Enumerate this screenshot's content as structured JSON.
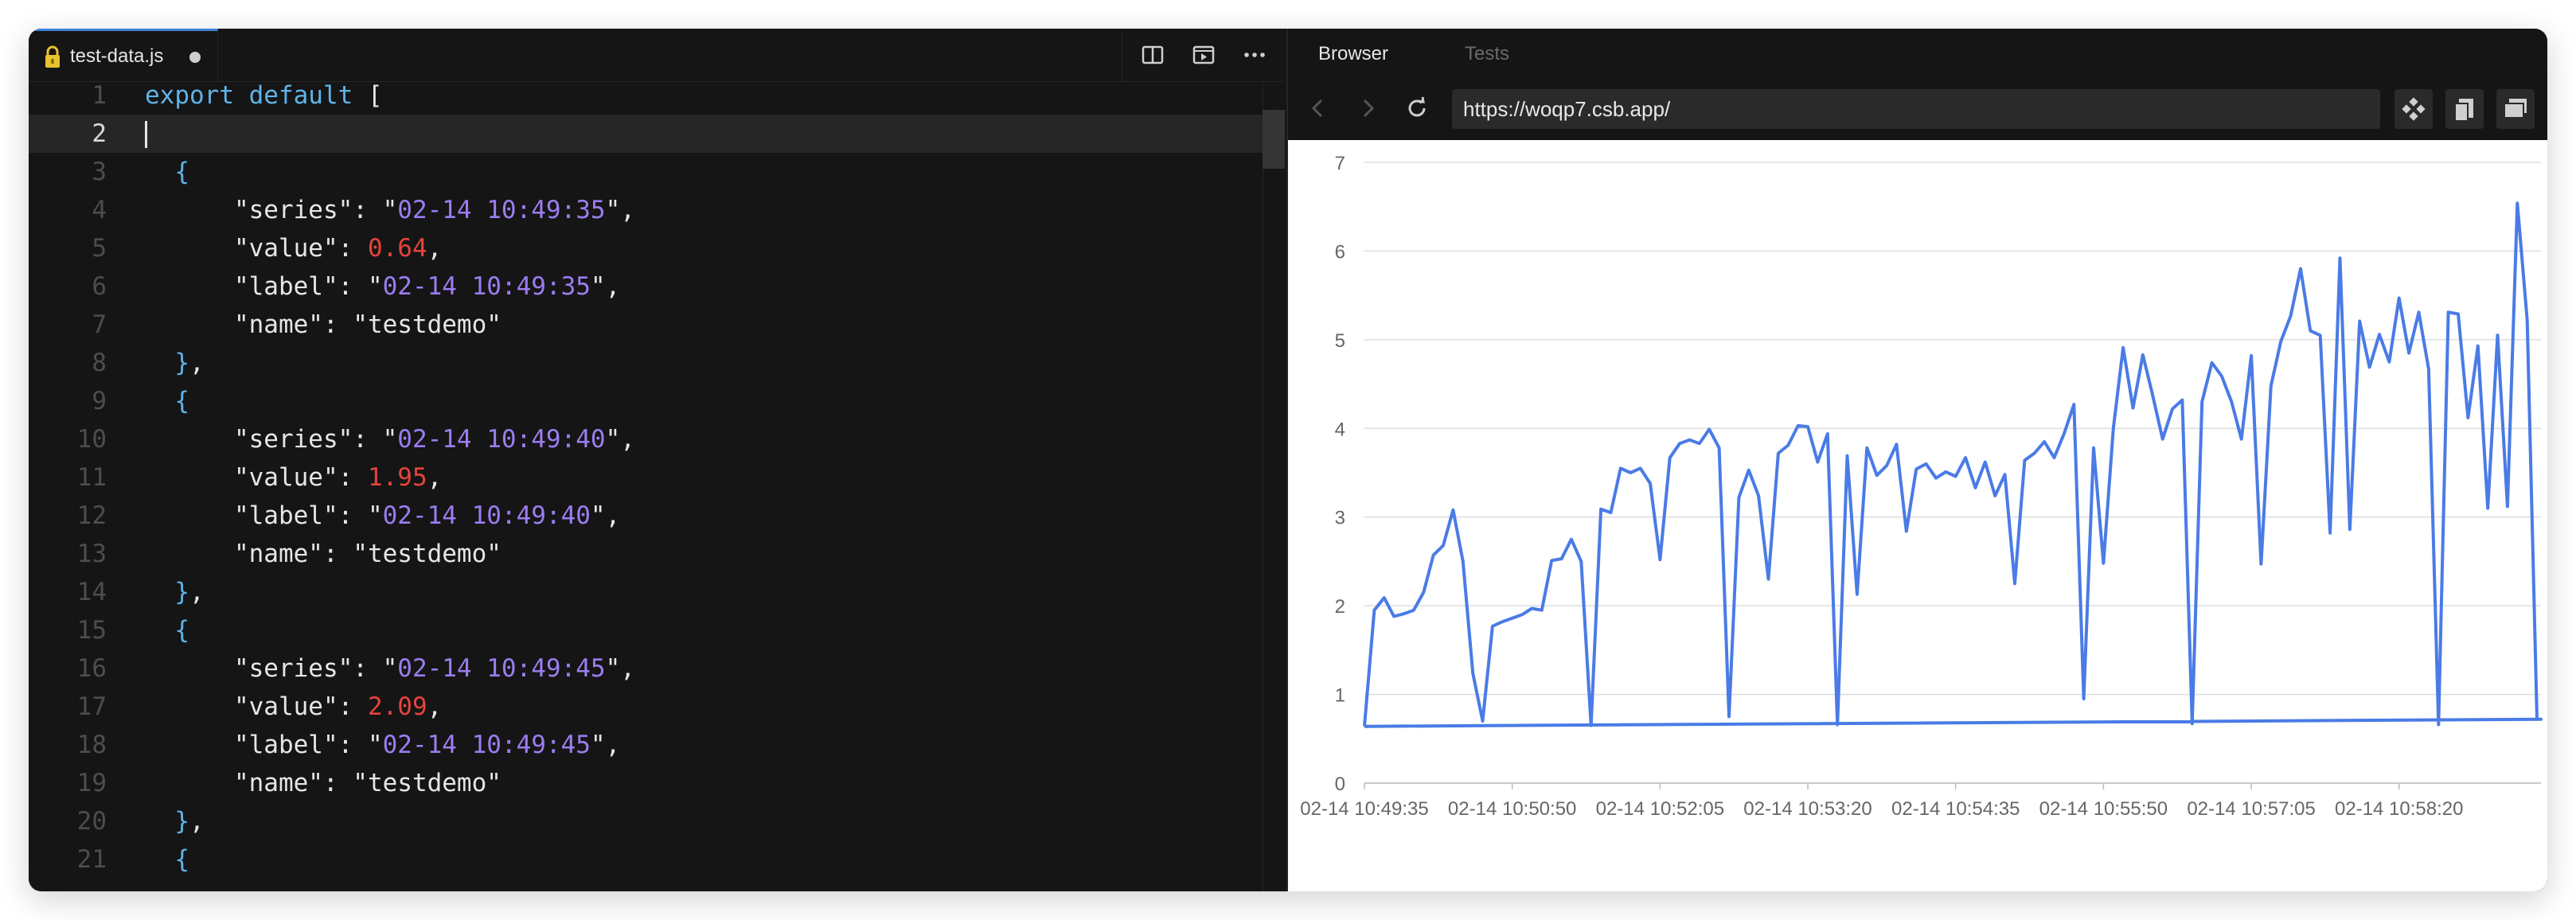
{
  "editor": {
    "tab_label": "test-data.js",
    "lines": [
      {
        "n": "1",
        "tokens": [
          [
            "kw",
            "export default "
          ],
          [
            "pun",
            "["
          ]
        ]
      },
      {
        "n": "2",
        "tokens": []
      },
      {
        "n": "3",
        "tokens": [
          [
            "pun",
            "  "
          ],
          [
            "brace",
            "{"
          ]
        ]
      },
      {
        "n": "4",
        "tokens": [
          [
            "pun",
            "      \"series\": \""
          ],
          [
            "str",
            "02-14 10:49:35"
          ],
          [
            "pun",
            "\","
          ]
        ]
      },
      {
        "n": "5",
        "tokens": [
          [
            "pun",
            "      \"value\": "
          ],
          [
            "num",
            "0.64"
          ],
          [
            "pun",
            ","
          ]
        ]
      },
      {
        "n": "6",
        "tokens": [
          [
            "pun",
            "      \"label\": \""
          ],
          [
            "str",
            "02-14 10:49:35"
          ],
          [
            "pun",
            "\","
          ]
        ]
      },
      {
        "n": "7",
        "tokens": [
          [
            "pun",
            "      \"name\": \"testdemo\""
          ]
        ]
      },
      {
        "n": "8",
        "tokens": [
          [
            "pun",
            "  "
          ],
          [
            "brace",
            "}"
          ],
          [
            "pun",
            ","
          ]
        ]
      },
      {
        "n": "9",
        "tokens": [
          [
            "pun",
            "  "
          ],
          [
            "brace",
            "{"
          ]
        ]
      },
      {
        "n": "10",
        "tokens": [
          [
            "pun",
            "      \"series\": \""
          ],
          [
            "str",
            "02-14 10:49:40"
          ],
          [
            "pun",
            "\","
          ]
        ]
      },
      {
        "n": "11",
        "tokens": [
          [
            "pun",
            "      \"value\": "
          ],
          [
            "num",
            "1.95"
          ],
          [
            "pun",
            ","
          ]
        ]
      },
      {
        "n": "12",
        "tokens": [
          [
            "pun",
            "      \"label\": \""
          ],
          [
            "str",
            "02-14 10:49:40"
          ],
          [
            "pun",
            "\","
          ]
        ]
      },
      {
        "n": "13",
        "tokens": [
          [
            "pun",
            "      \"name\": \"testdemo\""
          ]
        ]
      },
      {
        "n": "14",
        "tokens": [
          [
            "pun",
            "  "
          ],
          [
            "brace",
            "}"
          ],
          [
            "pun",
            ","
          ]
        ]
      },
      {
        "n": "15",
        "tokens": [
          [
            "pun",
            "  "
          ],
          [
            "brace",
            "{"
          ]
        ]
      },
      {
        "n": "16",
        "tokens": [
          [
            "pun",
            "      \"series\": \""
          ],
          [
            "str",
            "02-14 10:49:45"
          ],
          [
            "pun",
            "\","
          ]
        ]
      },
      {
        "n": "17",
        "tokens": [
          [
            "pun",
            "      \"value\": "
          ],
          [
            "num",
            "2.09"
          ],
          [
            "pun",
            ","
          ]
        ]
      },
      {
        "n": "18",
        "tokens": [
          [
            "pun",
            "      \"label\": \""
          ],
          [
            "str",
            "02-14 10:49:45"
          ],
          [
            "pun",
            "\","
          ]
        ]
      },
      {
        "n": "19",
        "tokens": [
          [
            "pun",
            "      \"name\": \"testdemo\""
          ]
        ]
      },
      {
        "n": "20",
        "tokens": [
          [
            "pun",
            "  "
          ],
          [
            "brace",
            "}"
          ],
          [
            "pun",
            ","
          ]
        ]
      },
      {
        "n": "21",
        "tokens": [
          [
            "pun",
            "  "
          ],
          [
            "brace",
            "{"
          ]
        ]
      }
    ],
    "active_line": "2",
    "icons": [
      "lock-icon",
      "split-editor-icon",
      "preview-icon",
      "more-actions-icon"
    ]
  },
  "browser": {
    "tabs": [
      "Browser",
      "Tests"
    ],
    "active_tab": "Browser",
    "url": "https://woqp7.csb.app/",
    "icons": [
      "back-icon",
      "forward-icon",
      "reload-icon",
      "move-icon",
      "copy-icon",
      "open-window-icon"
    ]
  },
  "colors": {
    "line": "#4a7be6",
    "grid": "#dddddd",
    "string": "#9b7df0",
    "number": "#e5443b",
    "keyword": "#5fb4e8"
  },
  "chart_data": {
    "type": "line",
    "title": "",
    "xlabel": "",
    "ylabel": "",
    "ylim": [
      0,
      7
    ],
    "yticks": [
      "0",
      "1",
      "2",
      "3",
      "4",
      "5",
      "6",
      "7"
    ],
    "xticks": [
      "02-14 10:49:35",
      "02-14 10:50:50",
      "02-14 10:52:05",
      "02-14 10:53:20",
      "02-14 10:54:35",
      "02-14 10:55:50",
      "02-14 10:57:05",
      "02-14 10:58:20"
    ],
    "x_range_seconds": [
      0,
      597
    ],
    "grid": true,
    "legend": "none",
    "series": [
      {
        "x": [
          0,
          5,
          10,
          15,
          20,
          25,
          30,
          35,
          40,
          45,
          50,
          55,
          60,
          65,
          70,
          75,
          80,
          85,
          90,
          95,
          100,
          105,
          110,
          115,
          120,
          125,
          130,
          135,
          140,
          145,
          150,
          155,
          160,
          165,
          170,
          175,
          180,
          185,
          190,
          195,
          200,
          205,
          210,
          215,
          220,
          225,
          230,
          235,
          240,
          245,
          250,
          255,
          260,
          265,
          270,
          275,
          280,
          285,
          290,
          295,
          300,
          305,
          310,
          315,
          320,
          325,
          330,
          335,
          340,
          345,
          350,
          355,
          360,
          365,
          370,
          375,
          380,
          385,
          390,
          395,
          400,
          405,
          410,
          415,
          420,
          425,
          430,
          435,
          440,
          445,
          450,
          455,
          460,
          465,
          470,
          475,
          480,
          485,
          490,
          495,
          500,
          505,
          510,
          515,
          520,
          525,
          530,
          535,
          540,
          545,
          550,
          555,
          560,
          565,
          570,
          575,
          580,
          585,
          590,
          595,
          597,
          0
        ],
        "values": [
          0.64,
          1.95,
          2.09,
          1.88,
          1.91,
          1.95,
          2.15,
          2.57,
          2.68,
          3.08,
          2.5,
          1.24,
          0.7,
          1.77,
          1.82,
          1.86,
          1.9,
          1.97,
          1.95,
          2.51,
          2.53,
          2.75,
          2.5,
          0.65,
          3.09,
          3.05,
          3.55,
          3.5,
          3.55,
          3.38,
          2.52,
          3.67,
          3.83,
          3.87,
          3.83,
          3.99,
          3.78,
          0.75,
          3.22,
          3.53,
          3.24,
          2.3,
          3.72,
          3.81,
          4.03,
          4.02,
          3.62,
          3.94,
          0.66,
          3.69,
          2.13,
          3.78,
          3.47,
          3.58,
          3.82,
          2.84,
          3.54,
          3.6,
          3.44,
          3.51,
          3.46,
          3.67,
          3.33,
          3.62,
          3.24,
          3.48,
          2.25,
          3.64,
          3.72,
          3.85,
          3.67,
          3.94,
          4.27,
          0.95,
          3.78,
          2.48,
          4.0,
          4.91,
          4.23,
          4.83,
          4.37,
          3.88,
          4.22,
          4.32,
          0.67,
          4.3,
          4.74,
          4.59,
          4.3,
          3.88,
          4.82,
          2.47,
          4.48,
          4.98,
          5.27,
          5.8,
          5.1,
          5.05,
          2.82,
          5.92,
          2.86,
          5.21,
          4.69,
          5.06,
          4.75,
          5.47,
          4.85,
          5.31,
          4.67,
          0.66,
          5.31,
          5.29,
          4.12,
          4.93,
          3.1,
          5.05,
          3.12,
          6.54,
          5.22,
          0.72,
          0.72,
          0.64
        ]
      }
    ]
  }
}
